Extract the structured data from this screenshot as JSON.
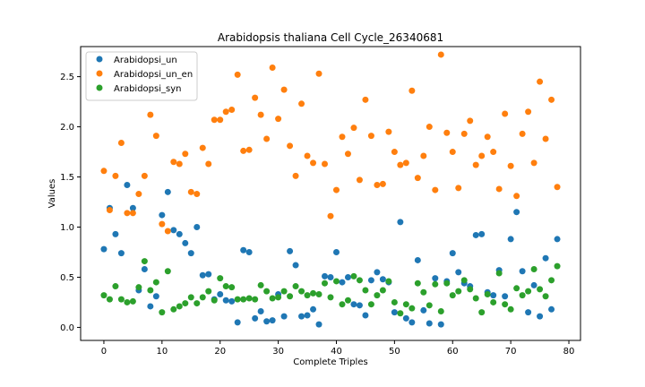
{
  "chart_data": {
    "type": "scatter",
    "title": "Arabidopsis thaliana Cell Cycle_26340681",
    "xlabel": "Complete Triples",
    "ylabel": "Values",
    "xlim": [
      -4,
      82
    ],
    "ylim": [
      -0.13,
      2.8
    ],
    "xticks": [
      "0",
      "10",
      "20",
      "30",
      "40",
      "50",
      "60",
      "70",
      "80"
    ],
    "yticks": [
      "0.0",
      "0.5",
      "1.0",
      "1.5",
      "2.0",
      "2.5"
    ],
    "grid": false,
    "legend_position": "upper-left",
    "series": [
      {
        "name": "Arabidopsi_un",
        "color": "#1f77b4",
        "x": [
          0,
          1,
          2,
          3,
          4,
          5,
          6,
          7,
          8,
          9,
          10,
          11,
          12,
          13,
          14,
          15,
          16,
          17,
          18,
          19,
          20,
          21,
          22,
          23,
          24,
          25,
          26,
          27,
          28,
          29,
          30,
          31,
          32,
          33,
          34,
          35,
          36,
          37,
          38,
          39,
          40,
          41,
          42,
          43,
          44,
          45,
          46,
          47,
          48,
          49,
          50,
          51,
          52,
          53,
          54,
          55,
          56,
          57,
          58,
          59,
          60,
          61,
          62,
          63,
          64,
          65,
          66,
          67,
          68,
          69,
          70,
          71,
          72,
          73,
          74,
          75,
          76,
          77,
          78
        ],
        "y": [
          0.78,
          1.19,
          0.93,
          0.74,
          1.42,
          1.19,
          0.37,
          0.58,
          0.21,
          0.31,
          1.12,
          1.35,
          0.97,
          0.93,
          0.84,
          0.74,
          1.0,
          0.52,
          0.53,
          0.28,
          0.33,
          0.27,
          0.26,
          0.05,
          0.77,
          0.75,
          0.09,
          0.16,
          0.06,
          0.07,
          0.33,
          0.11,
          0.76,
          0.62,
          0.11,
          0.12,
          0.18,
          0.03,
          0.51,
          0.5,
          0.75,
          0.45,
          0.5,
          0.23,
          0.22,
          0.12,
          0.47,
          0.55,
          0.48,
          0.45,
          0.15,
          1.05,
          0.09,
          0.05,
          0.67,
          0.17,
          0.04,
          0.49,
          0.03,
          0.46,
          0.74,
          0.55,
          0.44,
          0.41,
          0.92,
          0.93,
          0.35,
          0.32,
          0.57,
          0.31,
          0.88,
          1.15,
          0.56,
          0.15,
          0.42,
          0.11,
          0.69,
          0.18,
          0.88
        ]
      },
      {
        "name": "Arabidopsi_un_en",
        "color": "#ff7f0e",
        "x": [
          0,
          1,
          2,
          3,
          4,
          5,
          6,
          7,
          8,
          9,
          10,
          11,
          12,
          13,
          14,
          15,
          16,
          17,
          18,
          19,
          20,
          21,
          22,
          23,
          24,
          25,
          26,
          27,
          28,
          29,
          30,
          31,
          32,
          33,
          34,
          35,
          36,
          37,
          38,
          39,
          40,
          41,
          42,
          43,
          44,
          45,
          46,
          47,
          48,
          49,
          50,
          51,
          52,
          53,
          54,
          55,
          56,
          57,
          58,
          59,
          60,
          61,
          62,
          63,
          64,
          65,
          66,
          67,
          68,
          69,
          70,
          71,
          72,
          73,
          74,
          75,
          76,
          77,
          78
        ],
        "y": [
          1.56,
          1.17,
          1.51,
          1.84,
          1.14,
          1.14,
          1.33,
          1.51,
          2.12,
          1.91,
          1.03,
          0.96,
          1.65,
          1.63,
          1.73,
          1.35,
          1.33,
          1.79,
          1.63,
          2.07,
          2.07,
          2.15,
          2.17,
          2.52,
          1.76,
          1.77,
          2.29,
          2.12,
          1.88,
          2.59,
          2.08,
          2.37,
          1.81,
          1.51,
          2.23,
          1.71,
          1.64,
          2.53,
          1.63,
          1.11,
          1.37,
          1.9,
          1.73,
          1.99,
          1.47,
          2.27,
          1.91,
          1.42,
          1.43,
          1.95,
          1.75,
          1.62,
          1.64,
          2.36,
          1.49,
          1.71,
          2.0,
          1.37,
          2.72,
          1.94,
          1.75,
          1.39,
          1.93,
          2.06,
          1.62,
          1.71,
          1.9,
          1.75,
          1.38,
          2.13,
          1.61,
          1.31,
          1.93,
          2.15,
          1.64,
          2.45,
          1.88,
          2.27,
          1.4
        ]
      },
      {
        "name": "Arabidopsi_syn",
        "color": "#2ca02c",
        "x": [
          0,
          1,
          2,
          3,
          4,
          5,
          6,
          7,
          8,
          9,
          10,
          11,
          12,
          13,
          14,
          15,
          16,
          17,
          18,
          19,
          20,
          21,
          22,
          23,
          24,
          25,
          26,
          27,
          28,
          29,
          30,
          31,
          32,
          33,
          34,
          35,
          36,
          37,
          38,
          39,
          40,
          41,
          42,
          43,
          44,
          45,
          46,
          47,
          48,
          49,
          50,
          51,
          52,
          53,
          54,
          55,
          56,
          57,
          58,
          59,
          60,
          61,
          62,
          63,
          64,
          65,
          66,
          67,
          68,
          69,
          70,
          71,
          72,
          73,
          74,
          75,
          76,
          77,
          78
        ],
        "y": [
          0.32,
          0.28,
          0.41,
          0.28,
          0.25,
          0.26,
          0.4,
          0.66,
          0.37,
          0.45,
          0.15,
          0.56,
          0.18,
          0.21,
          0.24,
          0.3,
          0.24,
          0.3,
          0.36,
          0.27,
          0.49,
          0.41,
          0.4,
          0.28,
          0.28,
          0.29,
          0.28,
          0.42,
          0.36,
          0.29,
          0.3,
          0.36,
          0.31,
          0.41,
          0.36,
          0.32,
          0.34,
          0.33,
          0.44,
          0.3,
          0.46,
          0.23,
          0.27,
          0.51,
          0.47,
          0.37,
          0.23,
          0.32,
          0.37,
          0.46,
          0.25,
          0.14,
          0.23,
          0.19,
          0.44,
          0.35,
          0.22,
          0.43,
          0.16,
          0.44,
          0.32,
          0.36,
          0.47,
          0.38,
          0.29,
          0.15,
          0.33,
          0.25,
          0.54,
          0.23,
          0.18,
          0.39,
          0.32,
          0.36,
          0.58,
          0.38,
          0.31,
          0.47,
          0.61
        ]
      }
    ]
  }
}
